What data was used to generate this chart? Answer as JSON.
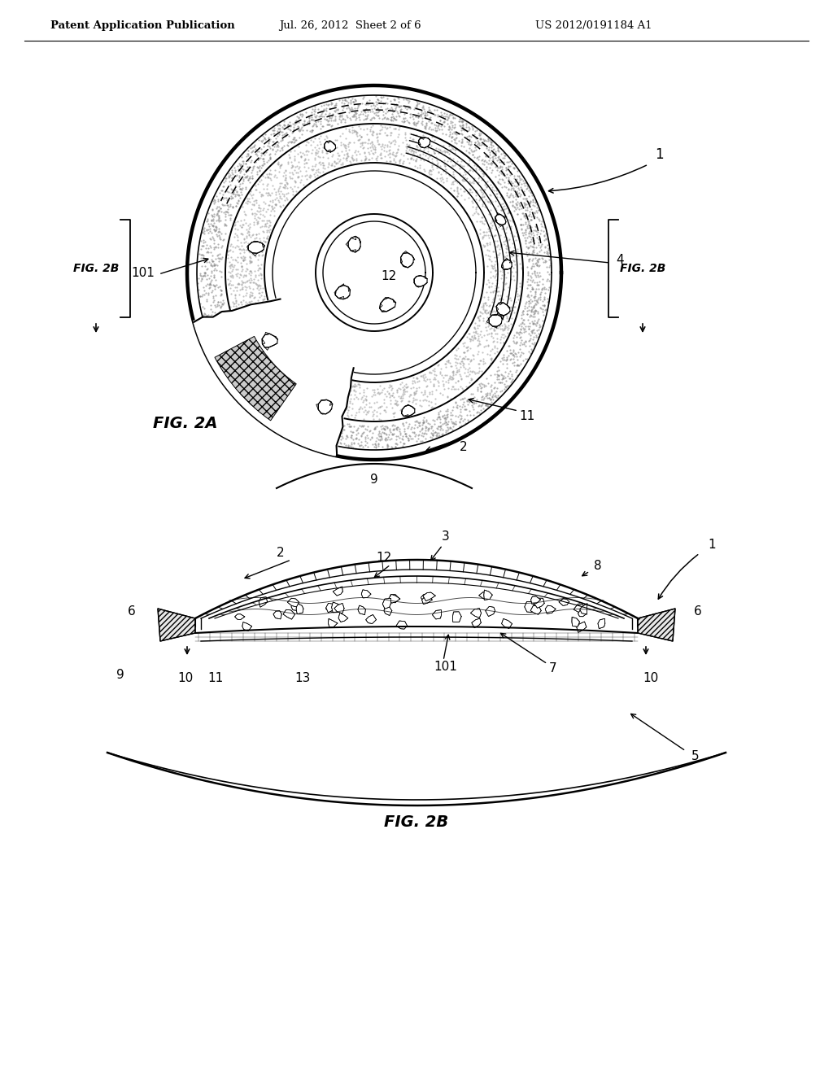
{
  "header_left": "Patent Application Publication",
  "header_mid": "Jul. 26, 2012  Sheet 2 of 6",
  "header_right": "US 2012/0191184 A1",
  "fig2a_label": "FIG. 2A",
  "fig2b_label": "FIG. 2B",
  "bg_color": "#ffffff",
  "line_color": "#000000"
}
